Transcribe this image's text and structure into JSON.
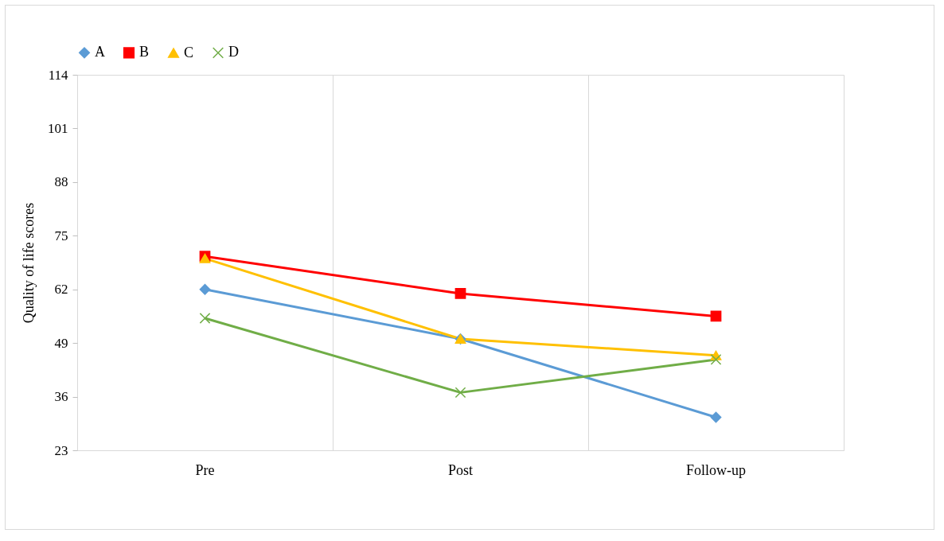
{
  "chart_data": {
    "type": "line",
    "ylabel": "Quality of life scores",
    "categories": [
      "Pre",
      "Post",
      "Follow-up"
    ],
    "ylim": [
      23,
      114
    ],
    "yticks": [
      23,
      36,
      49,
      62,
      75,
      88,
      101,
      114
    ],
    "grid": "x",
    "legend": "top",
    "line_style": "solid",
    "series": [
      {
        "name": "A",
        "color": "#5b9bd5",
        "marker": "diamond",
        "values": [
          62,
          50,
          31
        ]
      },
      {
        "name": "B",
        "color": "#ff0000",
        "marker": "square",
        "values": [
          70,
          61,
          55.5
        ]
      },
      {
        "name": "C",
        "color": "#ffc000",
        "marker": "triangle",
        "values": [
          69.5,
          50,
          46
        ]
      },
      {
        "name": "D",
        "color": "#70ad47",
        "marker": "cross",
        "values": [
          55,
          37,
          45
        ]
      }
    ]
  }
}
